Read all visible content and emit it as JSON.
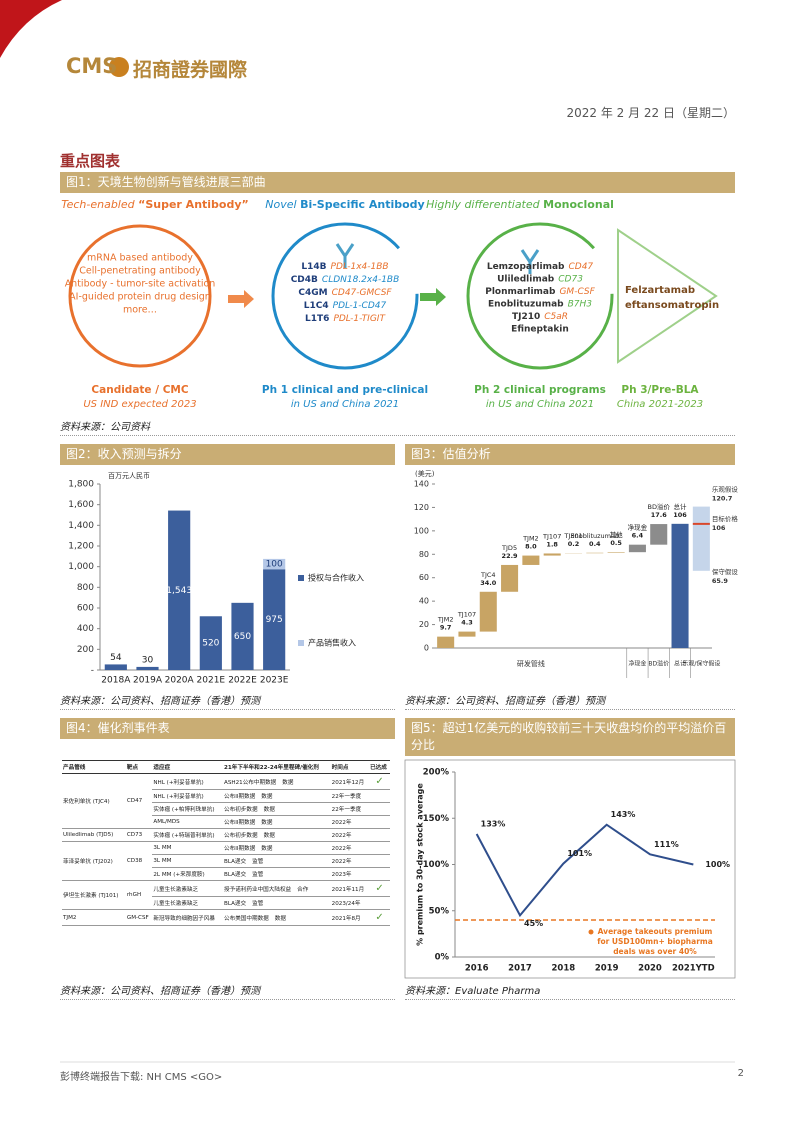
{
  "header": {
    "logo": "CMS",
    "company": "招商證券國際",
    "date": "2022 年 2 月 22 日（星期二）"
  },
  "section_title": "重点图表",
  "figure1": {
    "title": "图1：天境生物创新与管线进展三部曲",
    "stages": [
      {
        "heading_prefix": "Tech-enabled ",
        "heading_emph": "“Super Antibody”",
        "items": [
          "mRNA based antibody",
          "Cell-penetrating antibody",
          "Antibody - tumor-site activation",
          "AI-guided protein drug design",
          "more…"
        ],
        "caption": "Candidate / CMC",
        "subcaption": "US IND expected 2023"
      },
      {
        "heading_prefix": "Novel ",
        "heading_emph": "Bi-Specific Antibody",
        "items": [
          {
            "name": "L14B",
            "target": "PDL-1x4-1BB"
          },
          {
            "name": "CD4B",
            "target": "CLDN18.2x4-1BB"
          },
          {
            "name": "C4GM",
            "target": "CD47-GMCSF"
          },
          {
            "name": "L1C4",
            "target": "PDL-1-CD47"
          },
          {
            "name": "L1T6",
            "target": "PDL-1-TIGIT"
          }
        ],
        "caption": "Ph 1 clinical and pre-clinical",
        "subcaption": "in US and China 2021"
      },
      {
        "heading_prefix": "Highly differentiated ",
        "heading_emph": "Monoclonal",
        "items": [
          {
            "name": "Lemzoparlimab",
            "target": "CD47"
          },
          {
            "name": "Uliledlimab",
            "target": "CD73"
          },
          {
            "name": "Plonmarlimab",
            "target": "GM-CSF"
          },
          {
            "name": "Enoblituzumab",
            "target": "B7H3"
          },
          {
            "name": "TJ210",
            "target": "C5aR"
          },
          {
            "name": "Efineptakin"
          }
        ],
        "caption": "Ph 2 clinical programs",
        "subcaption": "in US and China 2021"
      },
      {
        "items": [
          "Felzartamab",
          "eftansomatropin"
        ],
        "caption": "Ph 3/Pre-BLA",
        "subcaption": "China 2021-2023"
      }
    ],
    "source": "资料来源：公司资料"
  },
  "figure4": {
    "title": "图4：催化剂事件表",
    "columns": [
      "产品管线",
      "靶点",
      "适应症",
      "21年下半年和22-24年里程碑/催化剂",
      "时间点",
      "已达成"
    ],
    "groups": [
      {
        "product": "来佐利单抗 (TJC4)",
        "target": "CD47",
        "rows": [
          {
            "indication": "NHL (+利妥昔单抗)",
            "milestone": "ASH21公布中期数据",
            "type": "数据",
            "time": "2021年12月",
            "done": "✓"
          },
          {
            "indication": "NHL (+利妥昔单抗)",
            "milestone": "公布II期数据",
            "type": "数据",
            "time": "22年一季度"
          },
          {
            "indication": "实体瘤 (+帕博利珠单抗)",
            "milestone": "公布初步数据",
            "type": "数据",
            "time": "22年一季度"
          },
          {
            "indication": "AML/MDS",
            "milestone": "公布II期数据",
            "type": "数据",
            "time": "2022年"
          }
        ]
      },
      {
        "product": "Uliledlimab (TJD5)",
        "target": "CD73",
        "rows": [
          {
            "indication": "实体瘤 (+特瑞普利单抗)",
            "milestone": "公布初步数据",
            "type": "数据",
            "time": "2022年"
          }
        ]
      },
      {
        "product": "菲泽妥单抗 (TJ202)",
        "target": "CD38",
        "rows": [
          {
            "indication": "3L MM",
            "milestone": "公布II期数据",
            "type": "数据",
            "time": "2022年"
          },
          {
            "indication": "3L MM",
            "milestone": "BLA递交",
            "type": "监管",
            "time": "2022年"
          },
          {
            "indication": "2L MM (+来那度胺)",
            "milestone": "BLA递交",
            "type": "监管",
            "time": "2023年"
          }
        ]
      },
      {
        "product": "伊坦生长激素 (TJ101)",
        "target": "rhGH",
        "rows": [
          {
            "indication": "儿童生长激素缺乏",
            "milestone": "授予诺利药业中国大陆权益",
            "type": "合作",
            "time": "2021年11月",
            "done": "✓"
          },
          {
            "indication": "儿童生长激素缺乏",
            "milestone": "BLA递交",
            "type": "监管",
            "time": "2023/24年"
          }
        ]
      },
      {
        "product": "TJM2",
        "target": "GM-CSF",
        "rows": [
          {
            "indication": "新冠导致的细胞因子风暴",
            "milestone": "公布美国中期数据",
            "type": "数据",
            "time": "2021年8月",
            "done": "✓"
          }
        ]
      }
    ],
    "source": "资料来源：公司资料、招商证券（香港）预测"
  },
  "chart_data": [
    {
      "type": "stacked_bar",
      "title": "图2：收入预测与拆分",
      "y_label": "百万元人民币",
      "categories": [
        "2018A",
        "2019A",
        "2020A",
        "2021E",
        "2022E",
        "2023E"
      ],
      "series": [
        {
          "name": "授权与合作收入",
          "color": "#3c5f9c",
          "values": [
            54,
            30,
            1543,
            520,
            650,
            975
          ],
          "value_labels": [
            "54",
            "30",
            "1,543",
            "520",
            "650",
            "975"
          ]
        },
        {
          "name": "产品销售收入",
          "color": "#b4c7e7",
          "values": [
            0,
            0,
            0,
            0,
            0,
            100
          ]
        }
      ],
      "ylim": [
        0,
        1800
      ],
      "yticks": [
        {
          "value": 0,
          "label": "-"
        },
        200,
        400,
        600,
        800,
        {
          "value": 1000,
          "label": "1,000"
        },
        {
          "value": 1200,
          "label": "1,200"
        },
        {
          "value": 1400,
          "label": "1,400"
        },
        {
          "value": 1600,
          "label": "1,600"
        },
        {
          "value": 1800,
          "label": "1,800"
        }
      ],
      "legend": "right",
      "source": "资料来源：公司资料、招商证券（香港）预测"
    },
    {
      "type": "waterfall",
      "title": "图3：估值分析",
      "y_label": "(美元)",
      "categories": [
        "TJM2",
        "TJ107",
        "TJC4",
        "TJD5",
        "TJM2",
        "TJ107",
        "TJ301",
        "Enoblituzumab",
        "其他",
        "净现金",
        "BD溢价",
        "总计"
      ],
      "values": [
        9.7,
        4.3,
        34.0,
        22.9,
        8.0,
        1.8,
        0.2,
        0.4,
        0.5,
        6.4,
        17.6,
        106
      ],
      "value_labels": [
        "9.7",
        "4.3",
        "34.0",
        "22.9",
        "8.0",
        "1.8",
        "0.2",
        "0.4",
        "0.5",
        "6.4",
        "17.6",
        "106"
      ],
      "measure": [
        "relative",
        "relative",
        "relative",
        "relative",
        "relative",
        "relative",
        "relative",
        "relative",
        "relative",
        "relative",
        "relative",
        "total"
      ],
      "colors": [
        "#c8a464",
        "#c8a464",
        "#c8a464",
        "#c8a464",
        "#c8a464",
        "#c8a464",
        "#c8a464",
        "#c8a464",
        "#c8a464",
        "#8c8c8c",
        "#8c8c8c",
        "#3c5f9c"
      ],
      "range": {
        "color": "#c5d5ea",
        "low": 65.9,
        "low_label": "保守假设",
        "high": 120.7,
        "high_label": "乐观假设",
        "target": 106,
        "target_label": "目标价格",
        "target_color": "#d9472b"
      },
      "x_groups": [
        "研发管线",
        "净现金",
        "BD溢价",
        "总计",
        "乐观/保守假设"
      ],
      "ylim": [
        0,
        140
      ],
      "yticks": [
        0,
        20,
        40,
        60,
        80,
        100,
        120,
        140
      ],
      "source": "资料来源：公司资料、招商证券（香港）预测"
    },
    {
      "type": "line",
      "title": "图5：超过1亿美元的收购较前三十天收盘均价的平均溢价百分比",
      "y_label": "% premium to 30-day stock average",
      "categories": [
        "2016",
        "2017",
        "2018",
        "2019",
        "2020",
        "2021YTD"
      ],
      "values": [
        133,
        45,
        101,
        143,
        111,
        100
      ],
      "value_labels": [
        "133%",
        "45%",
        "101%",
        "143%",
        "111%",
        "100%"
      ],
      "color": "#2f4e8c",
      "ylim": [
        0,
        200
      ],
      "yticks": [
        {
          "value": 0,
          "label": "0%"
        },
        {
          "value": 50,
          "label": "50%"
        },
        {
          "value": 100,
          "label": "100%"
        },
        {
          "value": 150,
          "label": "150%"
        },
        {
          "value": 200,
          "label": "200%"
        }
      ],
      "reference": {
        "value": 40,
        "color": "#e87722",
        "label": [
          "Average takeouts premium",
          "for USD100mn+ biopharma",
          "deals was over 40%"
        ]
      },
      "source": "资料来源：Evaluate Pharma"
    }
  ],
  "footer": {
    "text": "彭博终端报告下载: NH CMS <GO>",
    "page": "2"
  }
}
